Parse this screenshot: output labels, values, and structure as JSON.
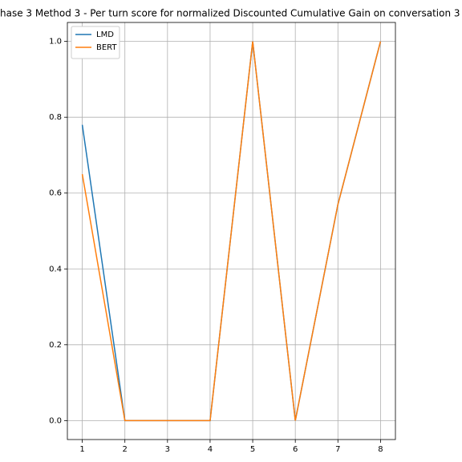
{
  "chart_data": {
    "type": "line",
    "title": "hase 3 Method 3 - Per turn score for normalized Discounted Cumulative Gain on conversation 3",
    "x": [
      1,
      2,
      3,
      4,
      5,
      6,
      7,
      8
    ],
    "series": [
      {
        "name": "LMD",
        "color": "#1f77b4",
        "values": [
          0.78,
          0,
          0,
          0,
          1,
          0,
          0.57,
          1
        ]
      },
      {
        "name": "BERT",
        "color": "#ff7f0e",
        "values": [
          0.65,
          0,
          0,
          0,
          1,
          0,
          0.57,
          1
        ]
      }
    ],
    "xlim": [
      0.65,
      8.35
    ],
    "xticks": [
      1,
      2,
      3,
      4,
      5,
      6,
      7,
      8
    ],
    "ylim": [
      -0.05,
      1.05
    ],
    "yticks": [
      {
        "value": 0,
        "label": "0.0"
      },
      0.2,
      0.4,
      0.6,
      0.8,
      {
        "value": 1,
        "label": "1.0"
      }
    ],
    "grid": true,
    "legend": "upper-left"
  }
}
